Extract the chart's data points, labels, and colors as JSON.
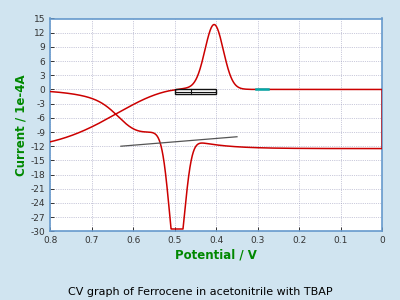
{
  "title": "CV graph of Ferrocene in acetonitrile with TBAP",
  "xlabel": "Potential / V",
  "ylabel": "Current / 1e-4A",
  "xlim": [
    0.8,
    0.0
  ],
  "ylim": [
    -30,
    15
  ],
  "yticks": [
    15,
    12,
    9,
    6,
    3,
    0,
    -3,
    -6,
    -9,
    -12,
    -15,
    -18,
    -21,
    -24,
    -27,
    -30
  ],
  "xticks": [
    0.8,
    0.7,
    0.6,
    0.5,
    0.4,
    0.3,
    0.2,
    0.1,
    0.0
  ],
  "curve_color": "#cc0000",
  "gray_color": "#555555",
  "teal_color": "#00aaaa",
  "ylabel_color": "#008800",
  "xlabel_color": "#008800",
  "title_color": "#000000",
  "plot_bg_color": "#ffffff",
  "fig_bg_color": "#d0e4f0",
  "border_color": "#6699cc",
  "grid_color": "#9999bb",
  "box_color": "#111111"
}
